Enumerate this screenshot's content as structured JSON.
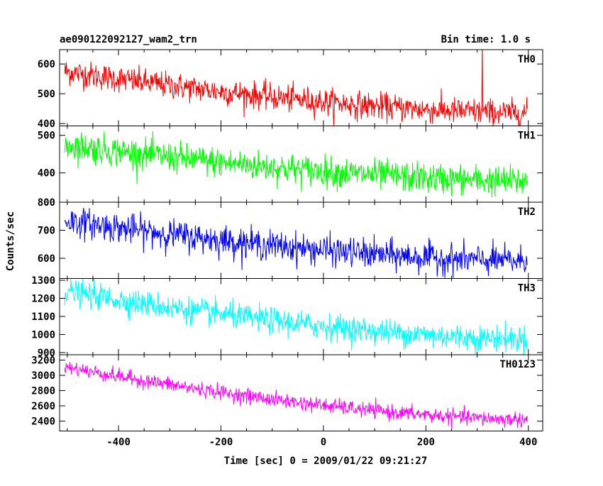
{
  "header": {
    "title": "ae090122092127_wam2_trn",
    "bin_time": "Bin time: 1.0 s"
  },
  "chart_data": {
    "type": "line",
    "xlabel": "Time [sec] 0 = 2009/01/22 09:21:27",
    "ylabel": "Counts/sec",
    "xlim": [
      -515,
      428
    ],
    "x_ticks": [
      -400,
      -200,
      0,
      200,
      400
    ],
    "x_range": [
      -505,
      398
    ],
    "bin": 1.0,
    "panels": [
      {
        "name": "TH0",
        "color": "#ff0000",
        "ylim": [
          392,
          648
        ],
        "yticks": [
          400,
          500,
          600
        ],
        "start": 575,
        "end": 435,
        "noise": 30,
        "spike_x": 310,
        "spike_y": 580
      },
      {
        "name": "TH1",
        "color": "#00ff00",
        "ylim": [
          322,
          525
        ],
        "yticks": [
          400,
          500
        ],
        "start": 475,
        "end": 378,
        "noise": 27
      },
      {
        "name": "TH2",
        "color": "#0000ff",
        "ylim": [
          528,
          800
        ],
        "yticks": [
          600,
          700,
          800
        ],
        "start": 735,
        "end": 590,
        "noise": 35
      },
      {
        "name": "TH3",
        "color": "#00ffff",
        "ylim": [
          888,
          1310
        ],
        "yticks": [
          900,
          1000,
          1100,
          1200,
          1300
        ],
        "start": 1240,
        "end": 975,
        "noise": 48
      },
      {
        "name": "TH0123",
        "color": "#ff00ff",
        "ylim": [
          2270,
          3270
        ],
        "yticks": [
          2400,
          2600,
          2800,
          3000,
          3200
        ],
        "start": 3110,
        "end": 2420,
        "noise": 65
      }
    ]
  }
}
